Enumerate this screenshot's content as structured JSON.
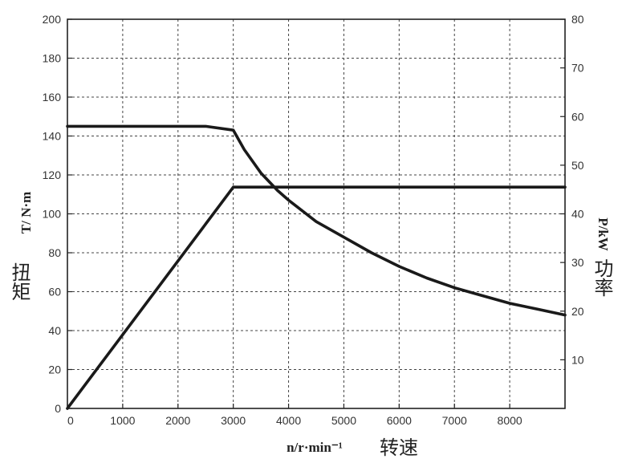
{
  "chart_data": {
    "type": "line",
    "title": "",
    "xlabel": "n/r·min⁻¹",
    "xlabel_cn": "转速",
    "ylabel_left": "T/ N·m",
    "ylabel_left_cn": "扭矩",
    "ylabel_right": "P/kW",
    "ylabel_right_cn": "功率",
    "xlim": [
      0,
      9000
    ],
    "ylim_left": [
      0,
      200
    ],
    "ylim_right": [
      0,
      80
    ],
    "x_ticks": [
      0,
      1000,
      2000,
      3000,
      4000,
      5000,
      6000,
      7000,
      8000
    ],
    "y_left_ticks": [
      0,
      20,
      40,
      60,
      80,
      100,
      120,
      140,
      160,
      180,
      200
    ],
    "y_right_ticks": [
      10,
      20,
      30,
      40,
      50,
      60,
      70,
      80
    ],
    "grid": true,
    "series": [
      {
        "axis": "left",
        "x": [
          0,
          2500,
          3000,
          3200,
          3500,
          3800,
          4000,
          4500,
          5000,
          5500,
          6000,
          6500,
          7000,
          7500,
          8000,
          8500,
          9000
        ],
        "y": [
          145,
          145,
          143,
          133,
          121,
          112,
          107,
          96,
          88,
          80,
          73,
          67,
          62,
          58,
          54,
          51,
          48
        ]
      },
      {
        "axis": "right",
        "x": [
          0,
          3000,
          9000
        ],
        "y": [
          0,
          45.5,
          45.5
        ]
      }
    ],
    "colors": {
      "line": "#1a1a1a",
      "grid": "#444444",
      "frame": "#222222"
    }
  }
}
